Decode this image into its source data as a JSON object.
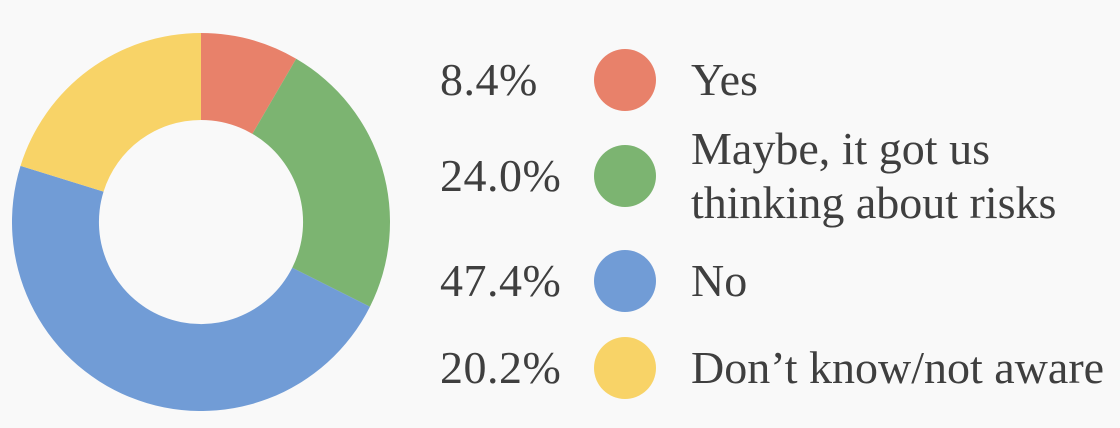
{
  "page": {
    "background_color": "#f9f9f9",
    "text_color": "#3f3f3f"
  },
  "chart_data": {
    "type": "pie",
    "subtype": "donut",
    "title": "",
    "legend_position": "right",
    "start_angle_deg": 0,
    "direction": "clockwise",
    "donut_hole_ratio": 0.54,
    "grid": false,
    "segments": [
      {
        "key": "yes",
        "pct_label": "8.4%",
        "value": 8.4,
        "label": "Yes",
        "label_lines": [
          "Yes"
        ],
        "color": "#e8816a"
      },
      {
        "key": "maybe",
        "pct_label": "24.0%",
        "value": 24.0,
        "label": "Maybe, it got us thinking about risks",
        "label_lines": [
          "Maybe, it got us",
          "thinking about risks"
        ],
        "color": "#7cb471"
      },
      {
        "key": "no",
        "pct_label": "47.4%",
        "value": 47.4,
        "label": "No",
        "label_lines": [
          "No"
        ],
        "color": "#719cd6"
      },
      {
        "key": "dont-know",
        "pct_label": "20.2%",
        "value": 20.2,
        "label": "Don’t know/not aware",
        "label_lines": [
          "Don’t know/not aware"
        ],
        "color": "#f8d367"
      }
    ]
  }
}
